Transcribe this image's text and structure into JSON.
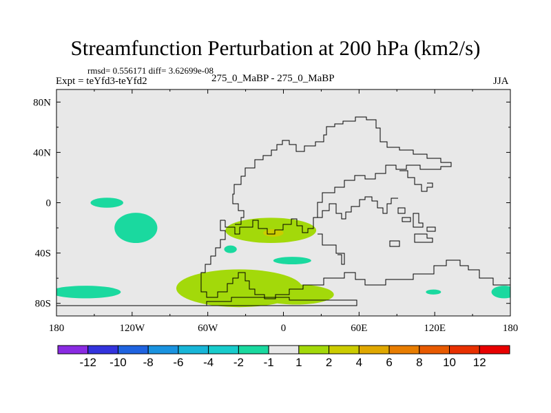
{
  "chart_data": {
    "type": "contour_map",
    "title": "Streamfunction Perturbation at 200 hPa (km2/s)",
    "stats_label": "rmsd= 0.556171 diff= 3.62699e-08",
    "left_label": "Expt = teYfd3-teYfd2",
    "center_label": "275_0_MaBP - 275_0_MaBP",
    "right_label": "JJA",
    "xlim": [
      -180,
      180
    ],
    "ylim": [
      -90,
      90
    ],
    "x_ticks": [
      {
        "value": -180,
        "label": "180"
      },
      {
        "value": -120,
        "label": "120W"
      },
      {
        "value": -60,
        "label": "60W"
      },
      {
        "value": 0,
        "label": "0"
      },
      {
        "value": 60,
        "label": "60E"
      },
      {
        "value": 120,
        "label": "120E"
      },
      {
        "value": 180,
        "label": "180"
      }
    ],
    "y_ticks": [
      {
        "value": 80,
        "label": "80N"
      },
      {
        "value": 40,
        "label": "40N"
      },
      {
        "value": 0,
        "label": "0"
      },
      {
        "value": -40,
        "label": "40S"
      },
      {
        "value": -80,
        "label": "80S"
      }
    ],
    "colorbar": {
      "boundaries": [
        "-12",
        "-10",
        "-8",
        "-6",
        "-4",
        "-2",
        "-1",
        "1",
        "2",
        "4",
        "6",
        "8",
        "10",
        "12"
      ],
      "colors": [
        "#8a2be2",
        "#3333dd",
        "#1f63e0",
        "#1a93e0",
        "#18b6d8",
        "#18cccc",
        "#1ad99f",
        "#e8e8e8",
        "#a3d90a",
        "#cccc00",
        "#e0a800",
        "#e87d00",
        "#e85a00",
        "#e83000",
        "#e80000"
      ]
    },
    "regions": [
      {
        "name": "positive-south-atlantic",
        "color": "#a3d90a",
        "lon_center": -35,
        "lat_center": -68,
        "lon_radius": 50,
        "lat_radius": 15
      },
      {
        "name": "positive-south-atlantic-east",
        "color": "#a3d90a",
        "lon_center": 10,
        "lat_center": -73,
        "lon_radius": 30,
        "lat_radius": 8
      },
      {
        "name": "positive-south-america-east",
        "color": "#a3d90a",
        "lon_center": -10,
        "lat_center": -22,
        "lon_radius": 36,
        "lat_radius": 10
      },
      {
        "name": "max-south-america-east",
        "color": "#cccc00",
        "lon_center": -8,
        "lat_center": -24,
        "lon_radius": 8,
        "lat_radius": 3
      },
      {
        "name": "negative-east-pacific-north",
        "color": "#1ad99f",
        "lon_center": -140,
        "lat_center": 0,
        "lon_radius": 13,
        "lat_radius": 4
      },
      {
        "name": "negative-east-pacific",
        "color": "#1ad99f",
        "lon_center": -117,
        "lat_center": -20,
        "lon_radius": 17,
        "lat_radius": 12
      },
      {
        "name": "negative-south-pacific-west",
        "color": "#1ad99f",
        "lon_center": -157,
        "lat_center": -71,
        "lon_radius": 28,
        "lat_radius": 5
      },
      {
        "name": "negative-south-atlantic-small",
        "color": "#1ad99f",
        "lon_center": -42,
        "lat_center": -37,
        "lon_radius": 5,
        "lat_radius": 3
      },
      {
        "name": "negative-indian-ocean",
        "color": "#1ad99f",
        "lon_center": 7,
        "lat_center": -46,
        "lon_radius": 15,
        "lat_radius": 3
      },
      {
        "name": "negative-australia-south",
        "color": "#1ad99f",
        "lon_center": 119,
        "lat_center": -71,
        "lon_radius": 6,
        "lat_radius": 2
      },
      {
        "name": "negative-dateline-south",
        "color": "#1ad99f",
        "lon_center": 175,
        "lat_center": -71,
        "lon_radius": 10,
        "lat_radius": 5
      }
    ]
  }
}
